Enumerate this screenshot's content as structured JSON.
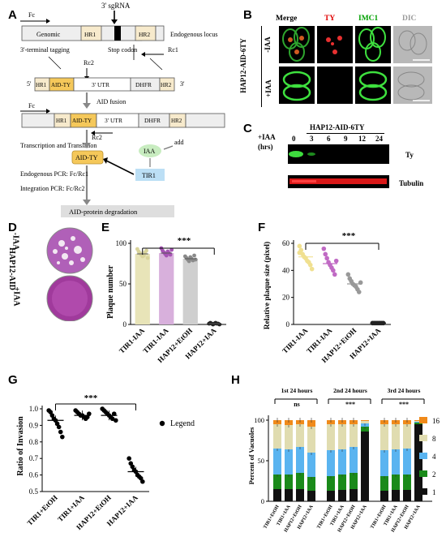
{
  "panels": {
    "A": "A",
    "B": "B",
    "C": "C",
    "D": "D",
    "E": "E",
    "F": "F",
    "G": "G",
    "H": "H"
  },
  "panelA": {
    "sgrna": "3' sgRNA",
    "fc": "Fc",
    "genomic": "Genomic",
    "hr1": "HR1",
    "hr2": "HR2",
    "endogenous_locus": "Endogenous locus",
    "tagging": "3'-terminal tagging",
    "stop_codon": "Stop codon",
    "rc1": "Rc1",
    "rc2": "Rc2",
    "aid_ty": "AID-TY",
    "utr": "3' UTR",
    "dhfr": "DHFR",
    "five": "5'",
    "three": "3'",
    "aid_fusion": "AID fusion",
    "transcription": "Transcription and Translation",
    "iaa": "IAA",
    "add": "add",
    "tir1": "TIR1",
    "endo_pcr": "Endogenous PCR: Fc/Rc1",
    "integ_pcr": "Integration PCR: Fc/Rc2",
    "degradation": "AID-protein degradation"
  },
  "panelB": {
    "cols": [
      "Merge",
      "TY",
      "IMC1",
      "DIC"
    ],
    "col_colors": [
      "#000000",
      "#e00000",
      "#00a000",
      "#9a9a9a"
    ],
    "strain": "HAP12-AID-6TY",
    "rows": [
      "-IAA",
      "+IAA"
    ]
  },
  "panelC": {
    "strain": "HAP12-AID-6TY",
    "iaa_label": "+IAA",
    "hrs_label": "(hrs)",
    "timepoints": [
      "0",
      "3",
      "6",
      "9",
      "12",
      "24"
    ],
    "bands": [
      "Ty",
      "Tubulin"
    ]
  },
  "panelD": {
    "strain": "HAP12-AID",
    "rows": [
      "-IAA",
      "+IAA"
    ]
  },
  "chart_data": [
    {
      "panel": "E",
      "type": "bar",
      "ylabel": "Plaque number",
      "ylim": [
        0,
        100
      ],
      "yticks": [
        0,
        50,
        100
      ],
      "categories": [
        "TIR1-IAA",
        "TIR1-IAA",
        "HAP12+EtOH",
        "HAP12+IAA"
      ],
      "values": [
        87,
        88,
        81,
        1
      ],
      "colors": [
        "#e8e4b8",
        "#d8b0dc",
        "#cfcfcf",
        "#222222"
      ],
      "point_colors": [
        "#d9d49a",
        "#a654b4",
        "#8a8a8a",
        "#222222"
      ],
      "points": [
        [
          93,
          90,
          88,
          86,
          84,
          85,
          89,
          91,
          82
        ],
        [
          94,
          91,
          89,
          87,
          85,
          90,
          88,
          86,
          92
        ],
        [
          84,
          82,
          80,
          78,
          83,
          81,
          79,
          85,
          80
        ],
        [
          1,
          2,
          1,
          0,
          1,
          2,
          1,
          1,
          0
        ]
      ],
      "significance": "***"
    },
    {
      "panel": "F",
      "type": "scatter",
      "ylabel": "Relative plaque size (pixel)",
      "ylim": [
        0,
        60
      ],
      "yticks": [
        0,
        20,
        40,
        60
      ],
      "categories": [
        "TIR1-IAA",
        "TIR1-IAA",
        "HAP12+EtOH",
        "HAP12+IAA"
      ],
      "values": [
        50,
        45,
        30,
        1
      ],
      "point_colors": [
        "#f0e090",
        "#c06ac4",
        "#999999",
        "#222222"
      ],
      "points": [
        [
          58,
          55,
          52,
          50,
          49,
          47,
          46,
          44,
          41,
          53
        ],
        [
          56,
          52,
          49,
          46,
          44,
          42,
          40,
          37,
          47
        ],
        [
          37,
          34,
          32,
          30,
          29,
          28,
          26,
          24,
          31
        ],
        [
          1,
          1,
          1,
          1,
          1,
          1,
          1,
          1
        ]
      ],
      "significance": "***"
    },
    {
      "panel": "G",
      "type": "scatter",
      "ylabel": "Ratio of Invasion",
      "ylim": [
        0.5,
        1.0
      ],
      "yticks": [
        0.5,
        0.6,
        0.7,
        0.8,
        0.9,
        1.0
      ],
      "categories": [
        "TIR1+EtOH",
        "TIR1+IAA",
        "HAP12+EtOH",
        "HAP12+IAA"
      ],
      "values": [
        0.93,
        0.96,
        0.96,
        0.62
      ],
      "points": [
        [
          0.99,
          0.98,
          0.96,
          0.94,
          0.93,
          0.91,
          0.89,
          0.86,
          0.83
        ],
        [
          0.99,
          0.98,
          0.97,
          0.96,
          0.96,
          0.95,
          0.94,
          0.95,
          0.97
        ],
        [
          1.0,
          0.99,
          0.98,
          0.97,
          0.96,
          0.95,
          0.94,
          0.97,
          0.93
        ],
        [
          0.7,
          0.67,
          0.65,
          0.63,
          0.62,
          0.6,
          0.59,
          0.58,
          0.56
        ]
      ],
      "legend": "Legend",
      "significance": "***"
    },
    {
      "panel": "H",
      "type": "bar",
      "stacked": true,
      "ylabel": "Percent of Vacuoles",
      "ylim": [
        0,
        100
      ],
      "yticks": [
        0,
        50,
        100
      ],
      "groups": [
        {
          "title": "1st 24 hours",
          "significance": "ns"
        },
        {
          "title": "2nd 24 hours",
          "significance": "***"
        },
        {
          "title": "3rd 24 hours",
          "significance": "***"
        }
      ],
      "categories": [
        "TIR1+EtOH",
        "TIR1+IAA",
        "HAP12+EtOH",
        "HAP12+IAA"
      ],
      "series": [
        {
          "name": "1",
          "color": "#111111",
          "values": [
            [
              15,
              15,
              15,
              13
            ],
            [
              13,
              14,
              15,
              86
            ],
            [
              13,
              14,
              14,
              95
            ]
          ]
        },
        {
          "name": "2",
          "color": "#1a8a1a",
          "values": [
            [
              18,
              18,
              20,
              17
            ],
            [
              18,
              19,
              20,
              6
            ],
            [
              18,
              19,
              19,
              2
            ]
          ]
        },
        {
          "name": "4",
          "color": "#5ab4f0",
          "values": [
            [
              32,
              31,
              32,
              30
            ],
            [
              32,
              31,
              32,
              4
            ],
            [
              32,
              31,
              32,
              1
            ]
          ]
        },
        {
          "name": "8",
          "color": "#e0dcb0",
          "values": [
            [
              30,
              30,
              28,
              32
            ],
            [
              32,
              31,
              28,
              3
            ],
            [
              32,
              31,
              30,
              1
            ]
          ]
        },
        {
          "name": "16",
          "color": "#f08a1a",
          "values": [
            [
              5,
              6,
              5,
              8
            ],
            [
              5,
              5,
              5,
              1
            ],
            [
              5,
              5,
              5,
              1
            ]
          ]
        }
      ]
    }
  ]
}
